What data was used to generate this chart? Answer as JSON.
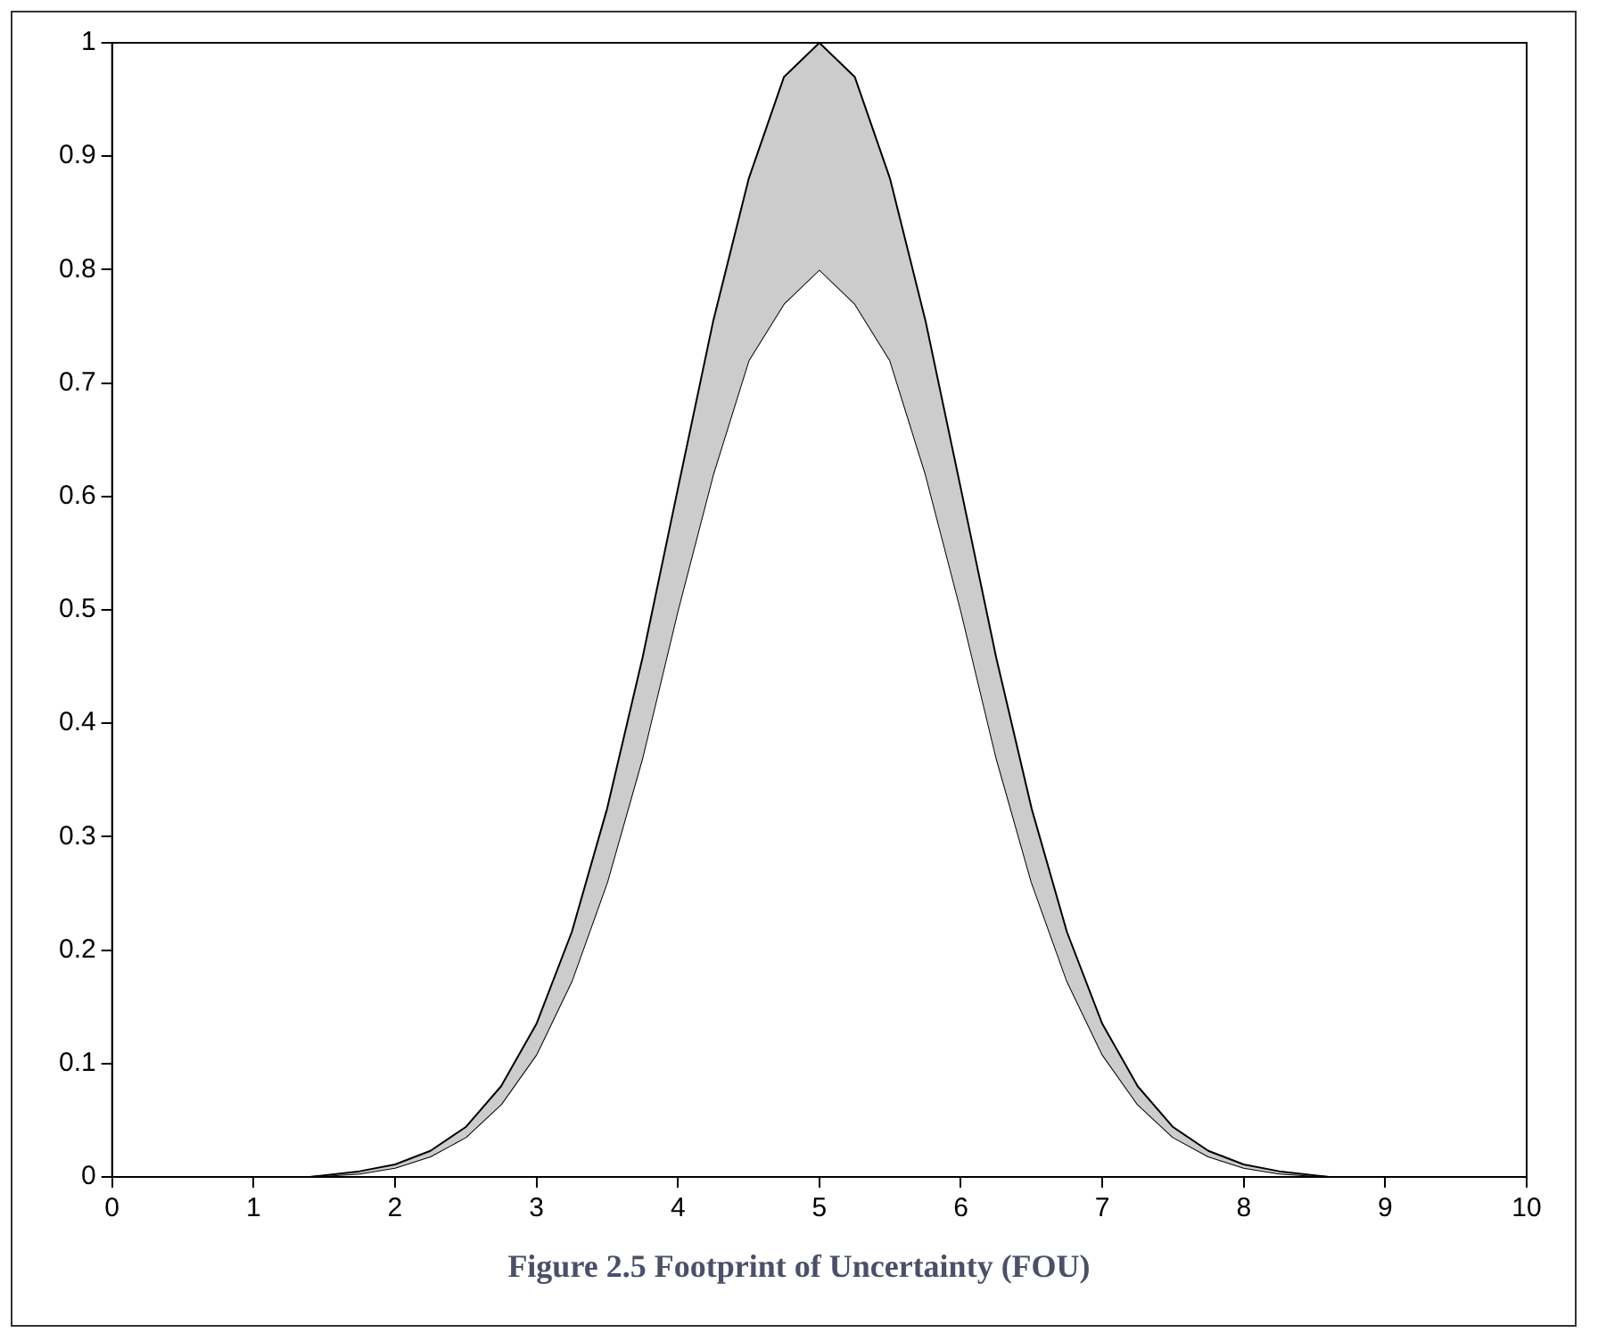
{
  "chart_data": {
    "type": "line",
    "title": "Figure 2.5 Footprint of Uncertainty (FOU)",
    "x": [
      1.4,
      1.75,
      2,
      2.25,
      2.5,
      2.75,
      3,
      3.25,
      3.5,
      3.75,
      4,
      4.25,
      4.5,
      4.75,
      5,
      5.25,
      5.5,
      5.75,
      6,
      6.25,
      6.5,
      6.75,
      7,
      7.25,
      7.5,
      7.75,
      8,
      8.25,
      8.6
    ],
    "series": [
      {
        "type": "area",
        "color": "#cccccc",
        "values": [
          0,
          0.005,
          0.011,
          0.023,
          0.044,
          0.08,
          0.135,
          0.216,
          0.325,
          0.458,
          0.607,
          0.755,
          0.88,
          0.97,
          1,
          0.97,
          0.88,
          0.755,
          0.607,
          0.458,
          0.325,
          0.216,
          0.135,
          0.08,
          0.044,
          0.023,
          0.011,
          0.005,
          0
        ]
      },
      {
        "color": "#000000",
        "values": [
          0,
          0.003,
          0.008,
          0.018,
          0.035,
          0.064,
          0.108,
          0.173,
          0.26,
          0.37,
          0.5,
          0.62,
          0.72,
          0.77,
          0.8,
          0.77,
          0.72,
          0.62,
          0.5,
          0.37,
          0.26,
          0.173,
          0.108,
          0.064,
          0.035,
          0.018,
          0.008,
          0.003,
          0
        ]
      }
    ],
    "xlim": [
      0,
      10
    ],
    "xticks": [
      0,
      1,
      2,
      3,
      4,
      5,
      6,
      7,
      8,
      9,
      10
    ],
    "ylim": [
      0,
      1
    ],
    "yticks": [
      0,
      0.1,
      0.2,
      0.3,
      0.4,
      0.5,
      0.6,
      0.7,
      0.8,
      0.9,
      1
    ],
    "legend": false,
    "marker": "none"
  }
}
